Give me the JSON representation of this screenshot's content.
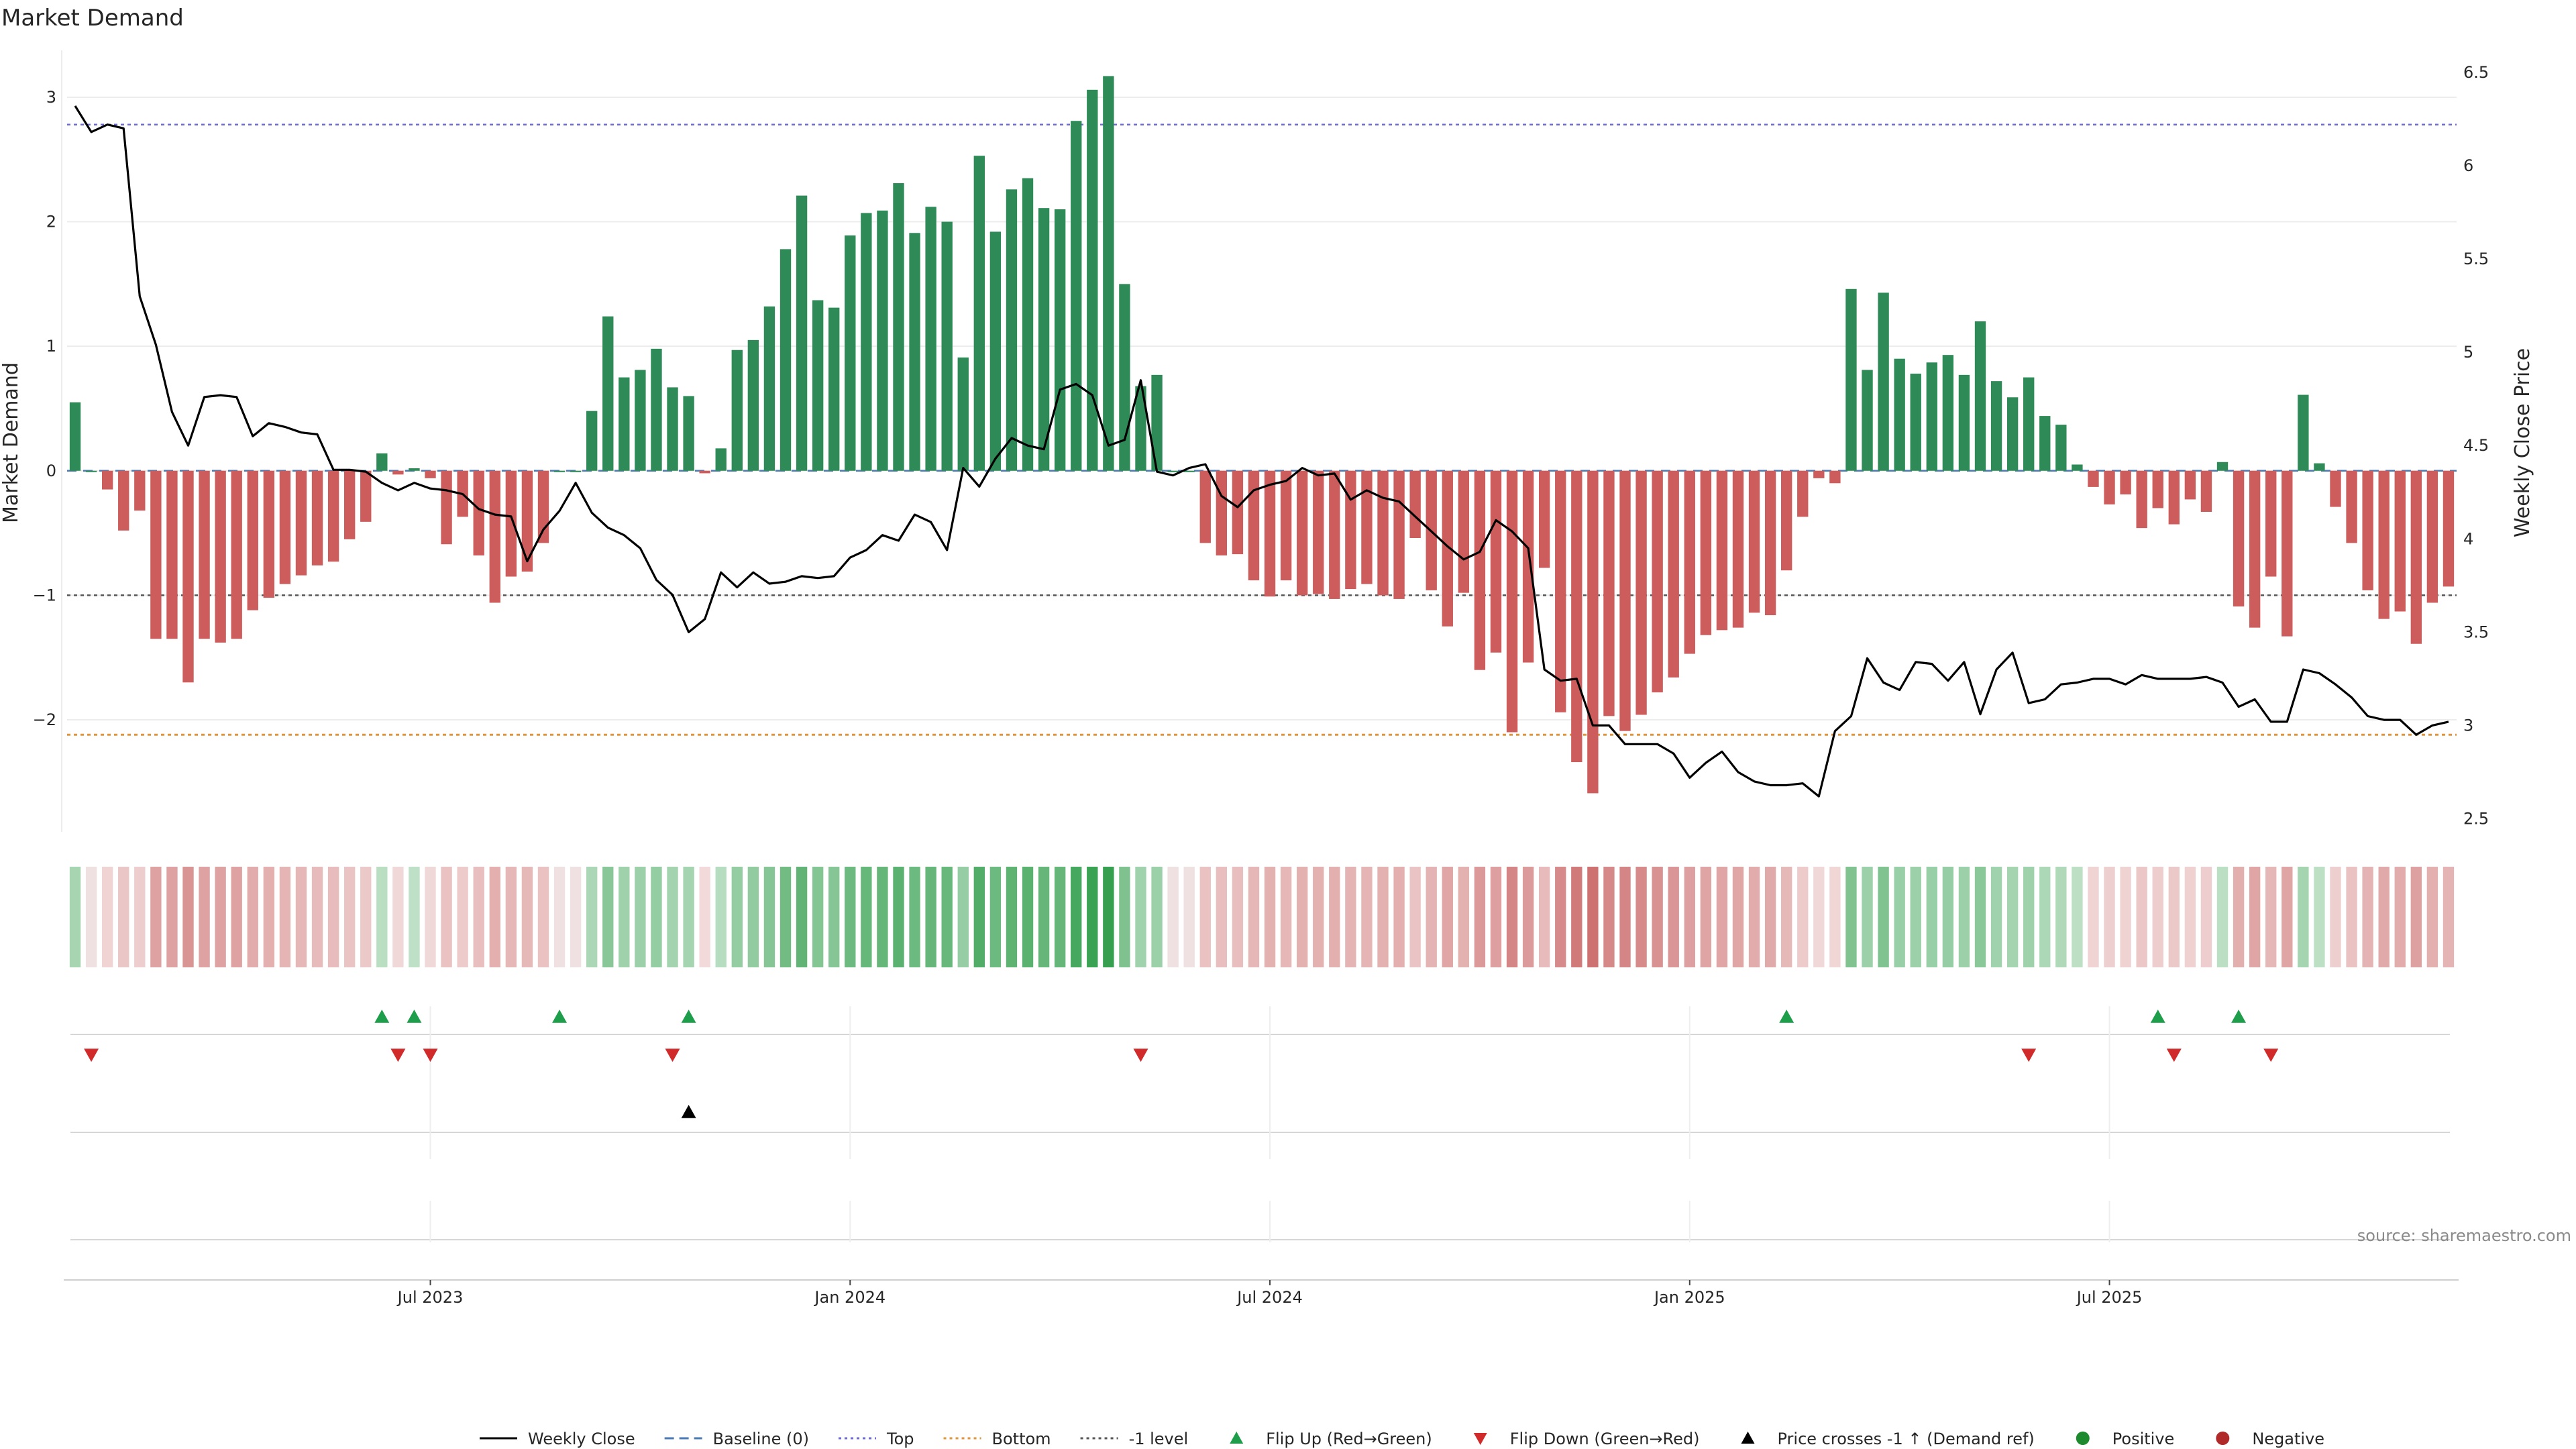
{
  "chart_data": {
    "type": "bar",
    "title": "Market Demand",
    "ylabel_left": "Market Demand",
    "ylabel_right": "Weekly Close Price",
    "ylim_left": [
      -2.9,
      3.35
    ],
    "ylim_right": [
      2.43,
      6.6
    ],
    "yticks_left": [
      {
        "value": 3,
        "label": "3"
      },
      {
        "value": 2,
        "label": "2"
      },
      {
        "value": 1,
        "label": "1"
      },
      {
        "value": 0,
        "label": "0"
      },
      {
        "value": -1,
        "label": "−1"
      },
      {
        "value": -2,
        "label": "−2"
      }
    ],
    "yticks_right": [
      {
        "value": 6.5,
        "label": "6.5"
      },
      {
        "value": 6,
        "label": "6"
      },
      {
        "value": 5.5,
        "label": "5.5"
      },
      {
        "value": 5,
        "label": "5"
      },
      {
        "value": 4.5,
        "label": "4.5"
      },
      {
        "value": 4,
        "label": "4"
      },
      {
        "value": 3.5,
        "label": "3.5"
      },
      {
        "value": 3,
        "label": "3"
      },
      {
        "value": 2.5,
        "label": "2.5"
      }
    ],
    "xticks": [
      {
        "index": 22,
        "label": "Jul 2023"
      },
      {
        "index": 48,
        "label": "Jan 2024"
      },
      {
        "index": 74,
        "label": "Jul 2024"
      },
      {
        "index": 100,
        "label": "Jan 2025"
      },
      {
        "index": 126,
        "label": "Jul 2025"
      }
    ],
    "reference_lines": {
      "top": 2.78,
      "bottom": -2.12,
      "minus_one": -1.0,
      "baseline": 0
    },
    "series": [
      {
        "name": "Market Demand",
        "type": "bar",
        "values": [
          0.55,
          0,
          -0.15,
          -0.48,
          -0.32,
          -1.35,
          -1.35,
          -1.7,
          -1.35,
          -1.38,
          -1.35,
          -1.12,
          -1.02,
          -0.91,
          -0.84,
          -0.76,
          -0.73,
          -0.55,
          -0.41,
          0.14,
          -0.03,
          0.02,
          -0.06,
          -0.59,
          -0.37,
          -0.68,
          -1.06,
          -0.85,
          -0.81,
          -0.58,
          0,
          0,
          0.48,
          1.24,
          0.75,
          0.81,
          0.98,
          0.67,
          0.6,
          -0.02,
          0.18,
          0.97,
          1.05,
          1.32,
          1.78,
          2.21,
          1.37,
          1.31,
          1.89,
          2.07,
          2.09,
          2.31,
          1.91,
          2.12,
          2.0,
          0.91,
          2.53,
          1.92,
          2.26,
          2.35,
          2.11,
          2.1,
          2.81,
          3.06,
          3.17,
          1.5,
          0.68,
          0.77,
          0,
          0,
          -0.58,
          -0.68,
          -0.67,
          -0.88,
          -1.01,
          -0.88,
          -1.0,
          -0.99,
          -1.03,
          -0.95,
          -0.91,
          -1.0,
          -1.03,
          -0.54,
          -0.96,
          -1.25,
          -0.98,
          -1.6,
          -1.46,
          -2.1,
          -1.54,
          -0.78,
          -1.94,
          -2.34,
          -2.59,
          -1.97,
          -2.09,
          -1.96,
          -1.78,
          -1.66,
          -1.47,
          -1.32,
          -1.28,
          -1.26,
          -1.14,
          -1.16,
          -0.8,
          -0.37,
          -0.06,
          -0.1,
          1.46,
          0.81,
          1.43,
          0.9,
          0.78,
          0.87,
          0.93,
          0.77,
          1.2,
          0.72,
          0.59,
          0.75,
          0.44,
          0.37,
          0.05,
          -0.13,
          -0.27,
          -0.19,
          -0.46,
          -0.3,
          -0.43,
          -0.23,
          -0.33,
          0.07,
          -1.09,
          -1.26,
          -0.85,
          -1.33,
          0.61,
          0.06,
          -0.29,
          -0.58,
          -0.96,
          -1.19,
          -1.13,
          -1.39,
          -1.06,
          -0.93
        ]
      },
      {
        "name": "Weekly Close",
        "type": "line",
        "values": [
          6.32,
          6.18,
          6.22,
          6.2,
          5.3,
          5.04,
          4.68,
          4.5,
          4.76,
          4.77,
          4.76,
          4.55,
          4.62,
          4.6,
          4.57,
          4.56,
          4.37,
          4.37,
          4.36,
          4.3,
          4.26,
          4.3,
          4.27,
          4.26,
          4.24,
          4.16,
          4.13,
          4.12,
          3.88,
          4.05,
          4.15,
          4.3,
          4.14,
          4.06,
          4.02,
          3.95,
          3.78,
          3.7,
          3.5,
          3.57,
          3.82,
          3.74,
          3.82,
          3.76,
          3.77,
          3.8,
          3.79,
          3.8,
          3.9,
          3.94,
          4.02,
          3.99,
          4.13,
          4.09,
          3.94,
          4.38,
          4.28,
          4.43,
          4.54,
          4.5,
          4.48,
          4.8,
          4.83,
          4.77,
          4.5,
          4.53,
          4.85,
          4.36,
          4.34,
          4.38,
          4.4,
          4.23,
          4.17,
          4.26,
          4.29,
          4.31,
          4.38,
          4.34,
          4.35,
          4.21,
          4.26,
          4.22,
          4.2,
          4.12,
          4.04,
          3.96,
          3.89,
          3.93,
          4.1,
          4.04,
          3.95,
          3.3,
          3.24,
          3.25,
          3.0,
          3.0,
          2.9,
          2.9,
          2.9,
          2.85,
          2.72,
          2.8,
          2.86,
          2.75,
          2.7,
          2.68,
          2.68,
          2.69,
          2.62,
          2.97,
          3.05,
          3.36,
          3.23,
          3.19,
          3.34,
          3.33,
          3.24,
          3.34,
          3.06,
          3.3,
          3.39,
          3.12,
          3.14,
          3.22,
          3.23,
          3.25,
          3.25,
          3.22,
          3.27,
          3.25,
          3.25,
          3.25,
          3.26,
          3.23,
          3.1,
          3.14,
          3.02,
          3.02,
          3.3,
          3.28,
          3.22,
          3.15,
          3.05,
          3.03,
          3.03,
          2.95,
          3.0,
          3.02
        ]
      }
    ],
    "heatmap_strip": "color-coded Market Demand per week (green positive, red negative)",
    "event_rows": [
      {
        "name": "Flip Up (Red→Green)",
        "marker": "triangle-up",
        "color": "#1e9e4a",
        "indices": [
          19,
          21,
          30,
          38,
          106,
          129,
          134
        ]
      },
      {
        "name": "Flip Down (Green→Red)",
        "marker": "triangle-down",
        "color": "#d12a2a",
        "indices": [
          1,
          20,
          22,
          37,
          66,
          121,
          130,
          136
        ]
      },
      {
        "name": "Price crosses -1 ↑ (Demand ref)",
        "marker": "triangle-up",
        "color": "#000000",
        "indices": [
          38
        ]
      }
    ],
    "legend": [
      {
        "label": "Weekly Close",
        "kind": "line-solid",
        "color": "#000000"
      },
      {
        "label": "Baseline (0)",
        "kind": "line-dash",
        "color": "#4a7ab5"
      },
      {
        "label": "Top",
        "kind": "line-dot",
        "color": "#6b6bd6"
      },
      {
        "label": "Bottom",
        "kind": "line-dot",
        "color": "#e0953a"
      },
      {
        "label": "-1 level",
        "kind": "line-dot",
        "color": "#555555"
      },
      {
        "label": "Flip Up (Red→Green)",
        "kind": "tri-up",
        "color": "#1e9e4a"
      },
      {
        "label": "Flip Down (Green→Red)",
        "kind": "tri-down",
        "color": "#d12a2a"
      },
      {
        "label": "Price crosses -1 ↑ (Demand ref)",
        "kind": "tri-up",
        "color": "#000000"
      },
      {
        "label": "Positive",
        "kind": "dot",
        "color": "#1e8a2e"
      },
      {
        "label": "Negative",
        "kind": "dot",
        "color": "#b02a2a"
      }
    ],
    "legend_placement": "bottom-center",
    "source": "source: sharemaestro.com"
  },
  "colors": {
    "positive_bar": "#2e8b57",
    "negative_bar": "#cd5c5c",
    "price_line": "#000000",
    "top_line": "#6b6bd6",
    "bottom_line": "#e0953a",
    "minus_one_line": "#555555",
    "baseline": "#4a7ab5"
  }
}
